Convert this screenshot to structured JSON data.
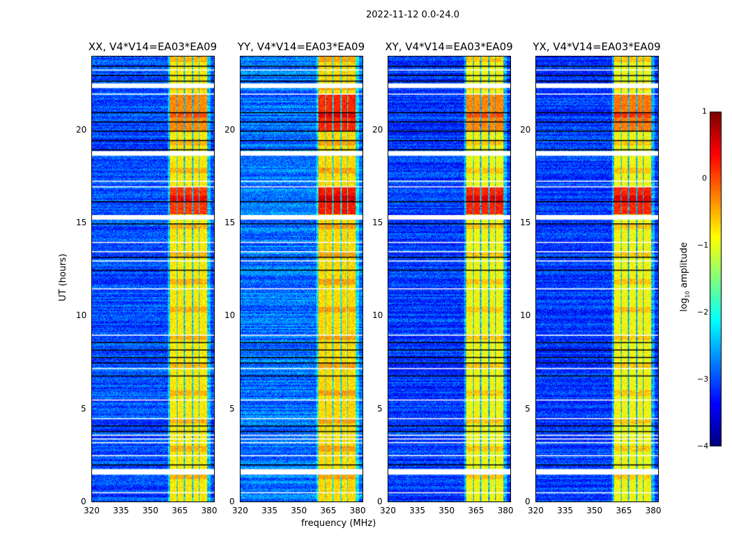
{
  "suptitle": "2022-11-12 0.0-24.0",
  "chart_data": {
    "type": "heatmap",
    "title": "2022-11-12 0.0-24.0",
    "xlabel": "frequency (MHz)",
    "ylabel": "UT (hours)",
    "xlim": [
      320,
      383
    ],
    "ylim": [
      0,
      24
    ],
    "xticks": [
      "320",
      "335",
      "350",
      "365",
      "380"
    ],
    "xtick_values": [
      320,
      335,
      350,
      365,
      380
    ],
    "yticks": [
      "0",
      "5",
      "10",
      "15",
      "20"
    ],
    "ytick_values": [
      0,
      5,
      10,
      15,
      20
    ],
    "panels": [
      {
        "title": "XX, V4*V14=EA03*EA09",
        "background": -3.0,
        "rfi_level": -0.8,
        "hot_ranges": [
          [
            15.5,
            17.0,
            0.1
          ],
          [
            20.0,
            22.0,
            -0.3
          ]
        ]
      },
      {
        "title": "YY, V4*V14=EA03*EA09",
        "background": -2.8,
        "rfi_level": -0.7,
        "hot_ranges": [
          [
            15.5,
            17.0,
            0.3
          ],
          [
            20.0,
            22.0,
            0.2
          ]
        ]
      },
      {
        "title": "XY, V4*V14=EA03*EA09",
        "background": -3.1,
        "rfi_level": -0.9,
        "hot_ranges": [
          [
            15.5,
            17.0,
            0.2
          ],
          [
            20.0,
            22.0,
            -0.3
          ]
        ]
      },
      {
        "title": "YX, V4*V14=EA03*EA09",
        "background": -3.1,
        "rfi_level": -0.9,
        "hot_ranges": [
          [
            15.5,
            17.0,
            0.2
          ],
          [
            20.0,
            22.0,
            -0.2
          ]
        ]
      }
    ],
    "rfi_subbands_mhz": [
      [
        360,
        363.5
      ],
      [
        364,
        367.3
      ],
      [
        368,
        371.5
      ],
      [
        372,
        375
      ],
      [
        375.5,
        379.3
      ]
    ],
    "flagged_ut_ranges": [
      [
        1.45,
        1.75
      ],
      [
        15.2,
        15.45
      ],
      [
        18.65,
        18.9
      ],
      [
        22.3,
        22.55
      ]
    ],
    "flagged_ut_lines": [
      0.5,
      2.5,
      3.2,
      3.4,
      3.6,
      4.5,
      5.5,
      7.2,
      9.0,
      11.5,
      13.0,
      13.5,
      14.0,
      17.0,
      17.3,
      22.0,
      23.3
    ],
    "dropout_ut_lines": [
      2.0,
      3.8,
      4.1,
      6.8,
      7.5,
      7.8,
      8.2,
      8.6,
      12.5,
      13.2,
      15.0,
      16.2,
      19.0,
      19.5,
      20.0,
      20.5,
      21.0,
      22.7,
      23.0,
      23.5
    ],
    "colorbar": {
      "label": "log10 amplitude",
      "label_base": "log",
      "label_sub": "10",
      "label_rest": " amplitude",
      "range": [
        -4,
        1
      ],
      "ticks": [
        "1",
        "0",
        "−1",
        "−2",
        "−3",
        "−4"
      ],
      "tick_values": [
        1,
        0,
        -1,
        -2,
        -3,
        -4
      ],
      "colormap": "jet"
    }
  }
}
